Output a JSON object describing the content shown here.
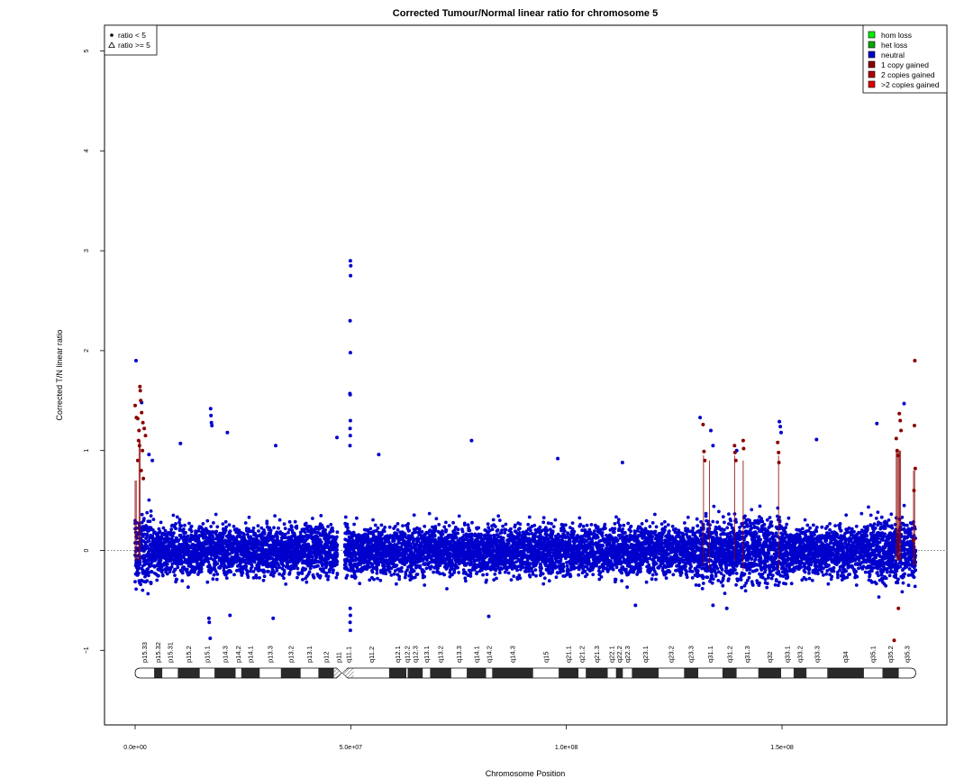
{
  "chart_data": {
    "type": "scatter",
    "title": "Corrected Tumour/Normal linear ratio for chromosome  5",
    "xlabel": "Chromosome Position",
    "ylabel": "Corrected T/N linear ratio",
    "xlim": [
      0,
      181000000
    ],
    "ylim": [
      -1.5,
      5
    ],
    "x_ticks": [
      {
        "value": 0,
        "label": "0.0e+00"
      },
      {
        "value": 50000000,
        "label": "5.0e+07"
      },
      {
        "value": 100000000,
        "label": "1.0e+08"
      },
      {
        "value": 150000000,
        "label": "1.5e+08"
      }
    ],
    "y_ticks": [
      {
        "value": -1,
        "label": "−1"
      },
      {
        "value": 0,
        "label": "0"
      },
      {
        "value": 1,
        "label": "1"
      },
      {
        "value": 2,
        "label": "2"
      },
      {
        "value": 3,
        "label": "3"
      },
      {
        "value": 4,
        "label": "4"
      },
      {
        "value": 5,
        "label": "5"
      }
    ],
    "reference_line_y": 0,
    "shape_legend": {
      "placement": "top-left",
      "entries": [
        {
          "symbol": "filled-circle",
          "label": "ratio < 5"
        },
        {
          "symbol": "open-triangle",
          "label": "ratio >= 5"
        }
      ]
    },
    "color_legend": {
      "placement": "top-right",
      "entries": [
        {
          "label": "hom loss",
          "color": "#00ee00"
        },
        {
          "label": "het loss",
          "color": "#00aa00"
        },
        {
          "label": "neutral",
          "color": "#0000cc"
        },
        {
          "label": "1 copy gained",
          "color": "#8b0000"
        },
        {
          "label": "2 copies gained",
          "color": "#b00000"
        },
        {
          "label": ">2 copies gained",
          "color": "#e00000"
        }
      ]
    },
    "series": [
      {
        "name": "neutral",
        "color": "#0000cc",
        "points": [
          [
            200000,
            1.9
          ],
          [
            1500000,
            1.48
          ],
          [
            3200000,
            0.96
          ],
          [
            4000000,
            0.9
          ],
          [
            10500000,
            1.07
          ],
          [
            17500000,
            1.42
          ],
          [
            17600000,
            1.35
          ],
          [
            17700000,
            1.28
          ],
          [
            17800000,
            1.25
          ],
          [
            17200000,
            -0.72
          ],
          [
            17400000,
            -0.88
          ],
          [
            21400000,
            1.18
          ],
          [
            17100000,
            -0.68
          ],
          [
            32600000,
            1.05
          ],
          [
            49900000,
            2.9
          ],
          [
            50000000,
            2.85
          ],
          [
            49950000,
            2.75
          ],
          [
            49850000,
            2.3
          ],
          [
            49900000,
            1.98
          ],
          [
            49800000,
            1.57
          ],
          [
            49870000,
            1.56
          ],
          [
            49900000,
            1.3
          ],
          [
            49850000,
            1.22
          ],
          [
            49880000,
            1.15
          ],
          [
            49820000,
            1.05
          ],
          [
            49900000,
            -0.8
          ],
          [
            49850000,
            -0.72
          ],
          [
            49900000,
            -0.65
          ],
          [
            49870000,
            -0.58
          ],
          [
            46800000,
            1.13
          ],
          [
            56500000,
            0.96
          ],
          [
            78000000,
            1.1
          ],
          [
            98000000,
            0.92
          ],
          [
            113000000,
            0.88
          ],
          [
            131000000,
            1.33
          ],
          [
            133500000,
            1.2
          ],
          [
            134000000,
            1.05
          ],
          [
            149400000,
            1.29
          ],
          [
            149600000,
            1.24
          ],
          [
            149800000,
            1.18
          ],
          [
            158000000,
            1.11
          ],
          [
            172000000,
            1.27
          ],
          [
            178300000,
            1.47
          ],
          [
            139500000,
            1.0
          ],
          [
            137200000,
            -0.58
          ],
          [
            134000000,
            -0.55
          ],
          [
            82000000,
            -0.66
          ],
          [
            116000000,
            -0.55
          ],
          [
            22000000,
            -0.65
          ],
          [
            32000000,
            -0.68
          ]
        ]
      },
      {
        "name": "1 copy gained",
        "color": "#8b0000",
        "points": [
          [
            0,
            1.45
          ],
          [
            300000,
            1.33
          ],
          [
            600000,
            1.32
          ],
          [
            900000,
            1.2
          ],
          [
            1100000,
            1.64
          ],
          [
            1200000,
            1.6
          ],
          [
            1300000,
            1.5
          ],
          [
            1500000,
            1.38
          ],
          [
            1800000,
            1.28
          ],
          [
            2100000,
            1.22
          ],
          [
            2400000,
            1.15
          ],
          [
            800000,
            1.1
          ],
          [
            1000000,
            1.05
          ],
          [
            1700000,
            1.0
          ],
          [
            600000,
            0.9
          ],
          [
            1400000,
            0.8
          ],
          [
            1900000,
            0.72
          ],
          [
            131700000,
            1.26
          ],
          [
            131900000,
            0.99
          ],
          [
            132100000,
            0.9
          ],
          [
            139000000,
            1.05
          ],
          [
            139100000,
            0.98
          ],
          [
            139300000,
            0.9
          ],
          [
            141000000,
            1.1
          ],
          [
            141100000,
            1.02
          ],
          [
            149000000,
            1.08
          ],
          [
            149200000,
            0.98
          ],
          [
            149300000,
            0.88
          ],
          [
            176500000,
            1.12
          ],
          [
            176700000,
            1.0
          ],
          [
            176900000,
            0.95
          ],
          [
            177200000,
            1.37
          ],
          [
            177400000,
            1.3
          ],
          [
            177600000,
            1.2
          ],
          [
            176000000,
            -0.9
          ],
          [
            177000000,
            -0.58
          ],
          [
            180800000,
            1.9
          ],
          [
            180700000,
            1.25
          ],
          [
            180900000,
            0.82
          ],
          [
            180600000,
            0.6
          ],
          [
            180500000,
            0.1
          ]
        ]
      }
    ],
    "dense_neutral_band": {
      "y_range": [
        -0.5,
        0.6
      ]
    },
    "ideogram": {
      "centromere_mb": 48,
      "bands": [
        {
          "name": "p15.33",
          "start": 0,
          "end": 4400000,
          "stain": "gneg"
        },
        {
          "name": "p15.32",
          "start": 4400000,
          "end": 6300000,
          "stain": "gpos"
        },
        {
          "name": "p15.31",
          "start": 6300000,
          "end": 9900000,
          "stain": "gneg"
        },
        {
          "name": "p15.2",
          "start": 9900000,
          "end": 15000000,
          "stain": "gpos"
        },
        {
          "name": "p15.1",
          "start": 15000000,
          "end": 18400000,
          "stain": "gneg"
        },
        {
          "name": "p14.3",
          "start": 18400000,
          "end": 23300000,
          "stain": "gpos"
        },
        {
          "name": "p14.2",
          "start": 23300000,
          "end": 24600000,
          "stain": "gneg"
        },
        {
          "name": "p14.1",
          "start": 24600000,
          "end": 28900000,
          "stain": "gpos"
        },
        {
          "name": "p13.3",
          "start": 28900000,
          "end": 33800000,
          "stain": "gneg"
        },
        {
          "name": "p13.2",
          "start": 33800000,
          "end": 38400000,
          "stain": "gpos"
        },
        {
          "name": "p13.1",
          "start": 38400000,
          "end": 42500000,
          "stain": "gneg"
        },
        {
          "name": "p12",
          "start": 42500000,
          "end": 46100000,
          "stain": "gpos"
        },
        {
          "name": "p11",
          "start": 46100000,
          "end": 48400000,
          "stain": "acen"
        },
        {
          "name": "q11.1",
          "start": 48400000,
          "end": 50700000,
          "stain": "acen"
        },
        {
          "name": "q11.2",
          "start": 50700000,
          "end": 58900000,
          "stain": "gneg"
        },
        {
          "name": "q12.1",
          "start": 58900000,
          "end": 62900000,
          "stain": "gpos"
        },
        {
          "name": "q12.2",
          "start": 62900000,
          "end": 63200000,
          "stain": "gneg"
        },
        {
          "name": "q12.3",
          "start": 63200000,
          "end": 66700000,
          "stain": "gpos"
        },
        {
          "name": "q13.1",
          "start": 66700000,
          "end": 68400000,
          "stain": "gneg"
        },
        {
          "name": "q13.2",
          "start": 68400000,
          "end": 73300000,
          "stain": "gpos"
        },
        {
          "name": "q13.3",
          "start": 73300000,
          "end": 76900000,
          "stain": "gneg"
        },
        {
          "name": "q14.1",
          "start": 76900000,
          "end": 81400000,
          "stain": "gpos"
        },
        {
          "name": "q14.2",
          "start": 81400000,
          "end": 82800000,
          "stain": "gneg"
        },
        {
          "name": "q14.3",
          "start": 82800000,
          "end": 92300000,
          "stain": "gpos"
        },
        {
          "name": "q15",
          "start": 92300000,
          "end": 98200000,
          "stain": "gneg"
        },
        {
          "name": "q21.1",
          "start": 98200000,
          "end": 102800000,
          "stain": "gpos"
        },
        {
          "name": "q21.2",
          "start": 102800000,
          "end": 104500000,
          "stain": "gneg"
        },
        {
          "name": "q21.3",
          "start": 104500000,
          "end": 109600000,
          "stain": "gpos"
        },
        {
          "name": "q22.1",
          "start": 109600000,
          "end": 111500000,
          "stain": "gneg"
        },
        {
          "name": "q22.2",
          "start": 111500000,
          "end": 113100000,
          "stain": "gpos"
        },
        {
          "name": "q22.3",
          "start": 113100000,
          "end": 115200000,
          "stain": "gneg"
        },
        {
          "name": "q23.1",
          "start": 115200000,
          "end": 121400000,
          "stain": "gpos"
        },
        {
          "name": "q23.2",
          "start": 121400000,
          "end": 127300000,
          "stain": "gneg"
        },
        {
          "name": "q23.3",
          "start": 127300000,
          "end": 130600000,
          "stain": "gpos"
        },
        {
          "name": "q31.1",
          "start": 130600000,
          "end": 136200000,
          "stain": "gneg"
        },
        {
          "name": "q31.2",
          "start": 136200000,
          "end": 139500000,
          "stain": "gpos"
        },
        {
          "name": "q31.3",
          "start": 139500000,
          "end": 144500000,
          "stain": "gneg"
        },
        {
          "name": "q32",
          "start": 144500000,
          "end": 149800000,
          "stain": "gpos"
        },
        {
          "name": "q33.1",
          "start": 149800000,
          "end": 152700000,
          "stain": "gneg"
        },
        {
          "name": "q33.2",
          "start": 152700000,
          "end": 155700000,
          "stain": "gpos"
        },
        {
          "name": "q33.3",
          "start": 155700000,
          "end": 160500000,
          "stain": "gneg"
        },
        {
          "name": "q34",
          "start": 160500000,
          "end": 169000000,
          "stain": "gpos"
        },
        {
          "name": "q35.1",
          "start": 169000000,
          "end": 173300000,
          "stain": "gneg"
        },
        {
          "name": "q35.2",
          "start": 173300000,
          "end": 177100000,
          "stain": "gpos"
        },
        {
          "name": "q35.3",
          "start": 177100000,
          "end": 181000000,
          "stain": "gneg"
        }
      ]
    },
    "grid": false
  }
}
